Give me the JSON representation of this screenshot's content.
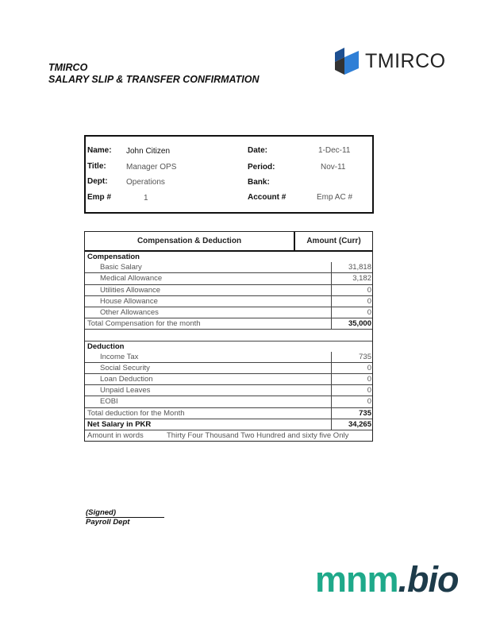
{
  "header": {
    "company": "TMIRCO",
    "title": "SALARY SLIP & TRANSFER CONFIRMATION"
  },
  "logo": {
    "text": "TMIRCO",
    "colors": [
      "#1a5fb4",
      "#222222"
    ]
  },
  "info": {
    "name_label": "Name:",
    "name": "John Citizen",
    "title_label": "Title:",
    "title": "Manager OPS",
    "dept_label": "Dept:",
    "dept": "Operations",
    "emp_label": "Emp #",
    "emp": "1",
    "date_label": "Date:",
    "date": "1-Dec-11",
    "period_label": "Period:",
    "period": "Nov-11",
    "bank_label": "Bank:",
    "account_label": "Account #",
    "account": "Emp AC #"
  },
  "table": {
    "col1": "Compensation & Deduction",
    "col2": "Amount (Curr)",
    "comp_heading": "Compensation",
    "comp": [
      {
        "label": "Basic Salary",
        "amount": "31,818"
      },
      {
        "label": "Medical Allowance",
        "amount": "3,182"
      },
      {
        "label": "Utilities Allowance",
        "amount": "0"
      },
      {
        "label": "House Allowance",
        "amount": "0"
      },
      {
        "label": "Other Allowances",
        "amount": "0"
      }
    ],
    "comp_total_label": "Total Compensation for the month",
    "comp_total": "35,000",
    "ded_heading": "Deduction",
    "ded": [
      {
        "label": "Income Tax",
        "amount": "735"
      },
      {
        "label": "Social Security",
        "amount": "0"
      },
      {
        "label": "Loan Deduction",
        "amount": "0"
      },
      {
        "label": "Unpaid Leaves",
        "amount": "0"
      },
      {
        "label": "EOBI",
        "amount": "0"
      }
    ],
    "ded_total_label": "Total deduction for the Month",
    "ded_total": "735",
    "net_label": "Net Salary in PKR",
    "net": "34,265",
    "words_label": "Amount in words",
    "words": "Thirty Four Thousand Two Hundred and sixty five Only"
  },
  "signature": {
    "signed": "(Signed)",
    "dept": "Payroll Dept"
  },
  "watermark": {
    "text": "mnm.bio",
    "colors": [
      "#1fa98a",
      "#1d3b4a"
    ]
  }
}
